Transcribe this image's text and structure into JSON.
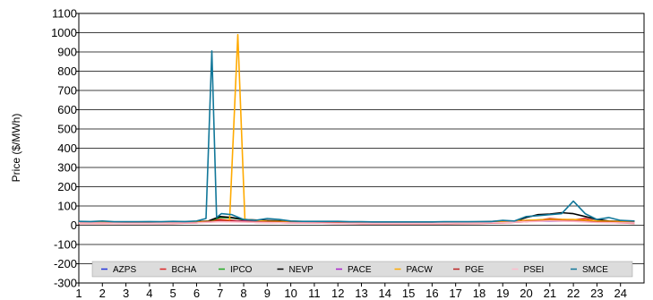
{
  "chart_data": {
    "type": "line",
    "title": "",
    "xlabel": "",
    "ylabel": "Price ($/MWh)",
    "xlim": [
      1,
      25
    ],
    "ylim": [
      -300,
      1100
    ],
    "x_ticks": [
      "1",
      "2",
      "3",
      "4",
      "5",
      "6",
      "7",
      "8",
      "9",
      "10",
      "11",
      "12",
      "13",
      "14",
      "15",
      "16",
      "17",
      "18",
      "19",
      "20",
      "21",
      "22",
      "23",
      "24"
    ],
    "y_ticks": [
      "-300",
      "-200",
      "-100",
      "0",
      "100",
      "200",
      "300",
      "400",
      "500",
      "600",
      "700",
      "800",
      "900",
      "1000",
      "1100"
    ],
    "grid": "horizontal",
    "legend_position": "bottom",
    "series": [
      {
        "name": "AZPS",
        "color": "#2233dd",
        "x": [
          1,
          1.5,
          2,
          2.5,
          3,
          4,
          5,
          6,
          6.5,
          7,
          7.5,
          8,
          8.5,
          9,
          10,
          11,
          12,
          13,
          14,
          15,
          16,
          17,
          18,
          19,
          19.5,
          20,
          20.5,
          21,
          21.5,
          22,
          22.5,
          23,
          23.5,
          24,
          24.6
        ],
        "y": [
          15,
          14,
          16,
          13,
          15,
          14,
          15,
          16,
          18,
          25,
          22,
          20,
          18,
          20,
          18,
          16,
          15,
          14,
          15,
          14,
          14,
          15,
          14,
          17,
          16,
          25,
          22,
          20,
          22,
          25,
          20,
          18,
          16,
          16,
          16
        ]
      },
      {
        "name": "BCHA",
        "color": "#dd2222",
        "x": [
          1,
          2,
          3,
          4,
          5,
          6,
          6.5,
          7,
          7.5,
          8,
          8.5,
          9,
          10,
          11,
          12,
          13,
          14,
          15,
          16,
          17,
          18,
          19,
          20,
          20.5,
          21,
          21.5,
          22,
          22.5,
          23,
          23.5,
          24,
          24.6
        ],
        "y": [
          10,
          10,
          9,
          9,
          10,
          12,
          20,
          30,
          25,
          18,
          15,
          14,
          12,
          11,
          10,
          8,
          8,
          8,
          8,
          9,
          10,
          12,
          18,
          25,
          35,
          30,
          28,
          35,
          20,
          15,
          12,
          10
        ]
      },
      {
        "name": "IPCO",
        "color": "#22aa22",
        "x": [
          1,
          2,
          3,
          4,
          5,
          6,
          6.5,
          7,
          7.5,
          8,
          9,
          10,
          11,
          12,
          13,
          14,
          15,
          16,
          17,
          18,
          19,
          20,
          21,
          22,
          23,
          24,
          24.6
        ],
        "y": [
          14,
          14,
          13,
          14,
          14,
          15,
          20,
          40,
          38,
          28,
          22,
          18,
          16,
          15,
          14,
          14,
          14,
          14,
          15,
          15,
          18,
          24,
          30,
          28,
          22,
          18,
          18
        ]
      },
      {
        "name": "NEVP",
        "color": "#000000",
        "x": [
          1,
          2,
          3,
          4,
          5,
          6,
          6.5,
          7,
          7.5,
          8,
          9,
          10,
          11,
          12,
          13,
          14,
          15,
          16,
          17,
          18,
          19,
          19.5,
          20,
          20.5,
          21,
          21.5,
          22,
          22.5,
          23,
          23.5,
          24,
          24.6
        ],
        "y": [
          17,
          17,
          16,
          16,
          17,
          18,
          22,
          45,
          40,
          30,
          24,
          20,
          18,
          17,
          16,
          16,
          16,
          16,
          17,
          17,
          22,
          20,
          40,
          55,
          58,
          65,
          60,
          45,
          30,
          22,
          20,
          20
        ]
      },
      {
        "name": "PACE",
        "color": "#aa22cc",
        "x": [
          1,
          2,
          3,
          4,
          5,
          6,
          7,
          8,
          9,
          10,
          11,
          12,
          13,
          14,
          15,
          16,
          17,
          18,
          19,
          20,
          21,
          22,
          23,
          24,
          24.6
        ],
        "y": [
          13,
          13,
          12,
          12,
          13,
          14,
          20,
          22,
          18,
          16,
          15,
          14,
          13,
          13,
          13,
          13,
          14,
          14,
          16,
          22,
          26,
          24,
          18,
          16,
          16
        ]
      },
      {
        "name": "PACW",
        "color": "#ffaa00",
        "x": [
          1,
          2,
          3,
          4,
          5,
          6,
          7,
          7.4,
          7.75,
          8.05,
          8.5,
          9,
          10,
          11,
          12,
          13,
          14,
          15,
          16,
          17,
          18,
          19,
          20,
          21,
          22,
          23,
          24,
          24.6
        ],
        "y": [
          16,
          16,
          15,
          15,
          16,
          17,
          22,
          25,
          990,
          30,
          25,
          20,
          18,
          16,
          15,
          15,
          15,
          15,
          15,
          16,
          16,
          18,
          25,
          30,
          30,
          22,
          18,
          18
        ]
      },
      {
        "name": "PGE",
        "color": "#bb2222",
        "x": [
          1,
          2,
          3,
          4,
          5,
          6,
          7,
          8,
          9,
          10,
          11,
          12,
          13,
          14,
          15,
          16,
          17,
          18,
          19,
          20,
          21,
          22,
          23,
          24,
          24.6
        ],
        "y": [
          12,
          12,
          11,
          11,
          12,
          13,
          22,
          20,
          16,
          14,
          13,
          12,
          11,
          11,
          11,
          11,
          12,
          12,
          14,
          20,
          24,
          22,
          16,
          14,
          14
        ]
      },
      {
        "name": "PSEI",
        "color": "#ffbbcc",
        "x": [
          1,
          2,
          3,
          4,
          5,
          6,
          7,
          8,
          9,
          10,
          11,
          12,
          13,
          14,
          15,
          16,
          17,
          18,
          19,
          20,
          21,
          22,
          23,
          24,
          24.6
        ],
        "y": [
          11,
          11,
          10,
          10,
          11,
          12,
          18,
          16,
          14,
          12,
          11,
          10,
          10,
          10,
          10,
          10,
          11,
          11,
          13,
          18,
          22,
          20,
          14,
          12,
          12
        ]
      },
      {
        "name": "SMCE",
        "color": "#117799",
        "x": [
          1,
          1.5,
          2,
          2.5,
          3,
          3.5,
          4,
          4.5,
          5,
          5.5,
          6,
          6.4,
          6.65,
          6.85,
          7.05,
          7.5,
          8,
          8.5,
          9,
          9.5,
          10,
          10.5,
          11,
          11.5,
          12,
          12.5,
          13,
          13.5,
          14,
          14.5,
          15,
          15.5,
          16,
          16.5,
          17,
          17.5,
          18,
          18.5,
          19,
          19.5,
          20,
          20.5,
          21,
          21.5,
          22,
          22.5,
          23,
          23.5,
          24,
          24.6
        ],
        "y": [
          20,
          19,
          22,
          18,
          18,
          18,
          19,
          18,
          20,
          19,
          22,
          35,
          905,
          40,
          60,
          55,
          30,
          25,
          35,
          30,
          22,
          20,
          20,
          20,
          20,
          18,
          18,
          17,
          17,
          17,
          17,
          17,
          17,
          18,
          18,
          18,
          19,
          19,
          25,
          22,
          45,
          50,
          55,
          60,
          125,
          60,
          30,
          40,
          25,
          22
        ]
      }
    ]
  }
}
